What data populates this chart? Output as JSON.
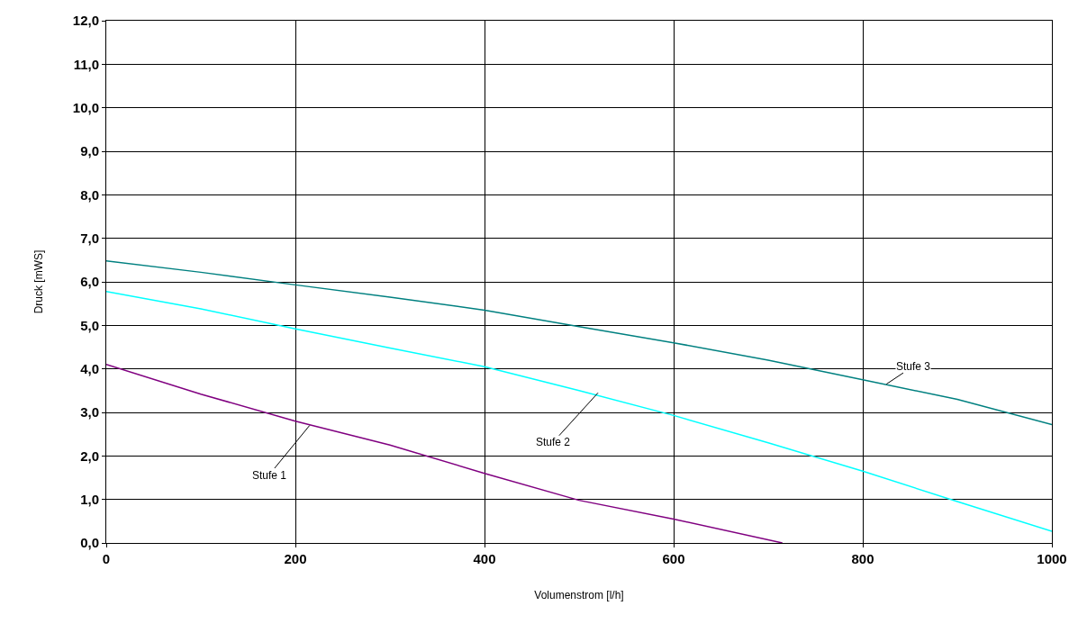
{
  "chart_data": {
    "type": "line",
    "xlabel": "Volumenstrom [l/h]",
    "ylabel": "Druck [mWS]",
    "x": [
      0,
      100,
      200,
      300,
      400,
      500,
      600,
      700,
      800,
      900,
      1000
    ],
    "series": [
      {
        "color": "#008080",
        "values": [
          6.48,
          6.22,
          5.93,
          5.65,
          5.35,
          4.97,
          4.6,
          4.2,
          3.75,
          3.3,
          2.72
        ]
      },
      {
        "color": "#00ffff",
        "values": [
          5.78,
          5.38,
          4.92,
          4.48,
          4.05,
          3.5,
          2.93,
          2.3,
          1.65,
          0.95,
          0.27
        ]
      },
      {
        "color": "#800080",
        "x": [
          0,
          100,
          200,
          300,
          400,
          500,
          600,
          715
        ],
        "values": [
          4.1,
          3.42,
          2.8,
          2.25,
          1.6,
          0.98,
          0.55,
          0
        ]
      }
    ],
    "annotations": [
      {
        "text": "Stufe 1",
        "x": 215,
        "y": 2.7
      },
      {
        "text": "Stufe 2",
        "x": 520,
        "y": 3.45
      },
      {
        "text": "Stufe 3",
        "x": 825,
        "y": 3.65
      }
    ],
    "xlim": [
      0,
      1000
    ],
    "xticks": [
      0,
      200,
      400,
      600,
      800,
      1000
    ],
    "ylim": [
      0,
      12
    ],
    "yticks": [
      {
        "value": 0,
        "label": "0,0"
      },
      {
        "value": 1,
        "label": "1,0"
      },
      {
        "value": 2,
        "label": "2,0"
      },
      {
        "value": 3,
        "label": "3,0"
      },
      {
        "value": 4,
        "label": "4,0"
      },
      {
        "value": 5,
        "label": "5,0"
      },
      {
        "value": 6,
        "label": "6,0"
      },
      {
        "value": 7,
        "label": "7,0"
      },
      {
        "value": 8,
        "label": "8,0"
      },
      {
        "value": 9,
        "label": "9,0"
      },
      {
        "value": 10,
        "label": "10,0"
      },
      {
        "value": 11,
        "label": "11,0"
      },
      {
        "value": 12,
        "label": "12,0"
      }
    ],
    "grid": true,
    "marker": "none",
    "line_style": "solid"
  }
}
